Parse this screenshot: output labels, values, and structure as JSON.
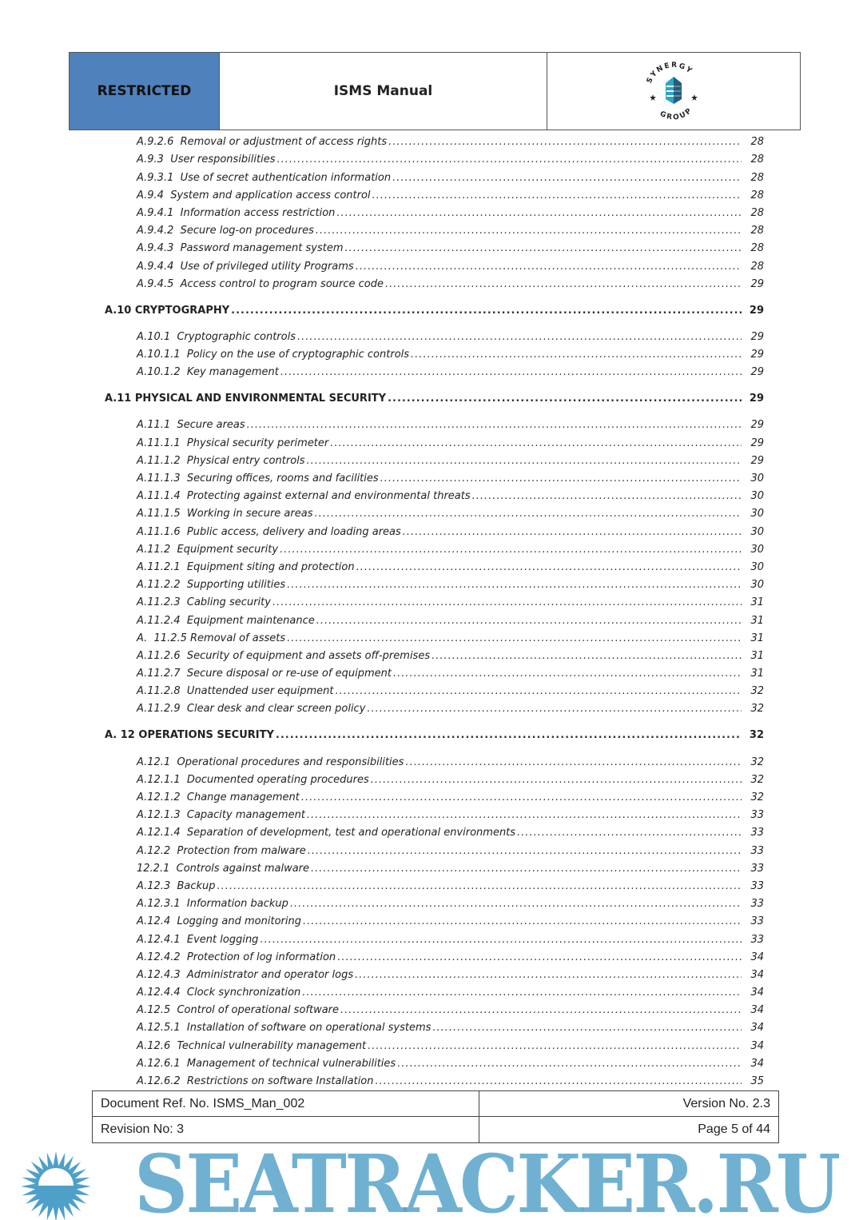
{
  "header": {
    "classification": "RESTRICTED",
    "title": "ISMS  Manual",
    "logo_text": "SYNERGY GROUP",
    "brand_color": "#4f81bd"
  },
  "toc": [
    {
      "level": 2,
      "num": "A.9.2.6",
      "title": "Removal or adjustment of access rights",
      "page": "28"
    },
    {
      "level": 2,
      "num": "A.9.3",
      "title": "User responsibilities",
      "page": "28"
    },
    {
      "level": 2,
      "num": "A.9.3.1",
      "title": "Use of secret authentication information",
      "page": "28"
    },
    {
      "level": 2,
      "num": "A.9.4",
      "title": "System and application access control",
      "page": "28"
    },
    {
      "level": 2,
      "num": "A.9.4.1",
      "title": "Information access restriction",
      "page": "28"
    },
    {
      "level": 2,
      "num": "A.9.4.2",
      "title": "Secure log-on procedures",
      "page": "28"
    },
    {
      "level": 2,
      "num": "A.9.4.3",
      "title": "Password management system",
      "page": "28"
    },
    {
      "level": 2,
      "num": "A.9.4.4",
      "title": "Use of privileged utility Programs",
      "page": "28"
    },
    {
      "level": 2,
      "num": "A.9.4.5",
      "title": "Access control to program source code",
      "page": "29"
    },
    {
      "level": 1,
      "num": "A.10",
      "title": "CRYPTOGRAPHY",
      "page": "29"
    },
    {
      "level": 2,
      "num": "A.10.1",
      "title": "Cryptographic controls",
      "page": "29"
    },
    {
      "level": 2,
      "num": "A.10.1.1",
      "title": "Policy on the use of cryptographic controls",
      "page": "29"
    },
    {
      "level": 2,
      "num": "A.10.1.2",
      "title": "Key management",
      "page": "29"
    },
    {
      "level": 1,
      "num": "A.11",
      "title": "PHYSICAL AND ENVIRONMENTAL SECURITY",
      "page": "29"
    },
    {
      "level": 2,
      "num": "A.11.1",
      "title": "Secure areas",
      "page": "29"
    },
    {
      "level": 2,
      "num": "A.11.1.1",
      "title": "Physical security perimeter",
      "page": "29"
    },
    {
      "level": 2,
      "num": "A.11.1.2",
      "title": "Physical entry controls",
      "page": "29"
    },
    {
      "level": 2,
      "num": "A.11.1.3",
      "title": "Securing offices, rooms and facilities",
      "page": "30"
    },
    {
      "level": 2,
      "num": "A.11.1.4",
      "title": "Protecting against external and environmental threats",
      "page": "30"
    },
    {
      "level": 2,
      "num": "A.11.1.5",
      "title": "Working in secure areas",
      "page": "30"
    },
    {
      "level": 2,
      "num": "A.11.1.6",
      "title": "Public access, delivery and loading areas",
      "page": "30"
    },
    {
      "level": 2,
      "num": "A.11.2",
      "title": "Equipment security",
      "page": "30"
    },
    {
      "level": 2,
      "num": "A.11.2.1",
      "title": "Equipment siting and protection",
      "page": "30"
    },
    {
      "level": 2,
      "num": "A.11.2.2",
      "title": "Supporting utilities",
      "page": "30"
    },
    {
      "level": 2,
      "num": "A.11.2.3",
      "title": "Cabling security",
      "page": "31"
    },
    {
      "level": 2,
      "num": "A.11.2.4",
      "title": "Equipment maintenance",
      "page": "31"
    },
    {
      "level": 2,
      "num": "A.",
      "title": "11.2.5 Removal of assets",
      "page": "31"
    },
    {
      "level": 2,
      "num": "A.11.2.6",
      "title": "Security of equipment and assets off-premises",
      "page": "31"
    },
    {
      "level": 2,
      "num": "A.11.2.7",
      "title": "Secure disposal or re-use of equipment",
      "page": "31"
    },
    {
      "level": 2,
      "num": "A.11.2.8",
      "title": "Unattended user equipment",
      "page": "32"
    },
    {
      "level": 2,
      "num": "A.11.2.9",
      "title": "Clear desk and clear screen policy",
      "page": "32"
    },
    {
      "level": 1,
      "num": "A. 12",
      "title": "OPERATIONS SECURITY",
      "page": "32"
    },
    {
      "level": 2,
      "num": "A.12.1",
      "title": "Operational procedures and responsibilities",
      "page": "32"
    },
    {
      "level": 2,
      "num": "A.12.1.1",
      "title": "Documented operating procedures",
      "page": "32"
    },
    {
      "level": 2,
      "num": "A.12.1.2",
      "title": "Change management",
      "page": "32"
    },
    {
      "level": 2,
      "num": "A.12.1.3",
      "title": "Capacity management",
      "page": "33"
    },
    {
      "level": 2,
      "num": "A.12.1.4",
      "title": "Separation of development, test and operational environments",
      "page": "33"
    },
    {
      "level": 2,
      "num": "A.12.2",
      "title": "Protection from malware",
      "page": "33"
    },
    {
      "level": 2,
      "num": "12.2.1",
      "title": "Controls against malware",
      "page": "33"
    },
    {
      "level": 2,
      "num": "A.12.3",
      "title": "Backup",
      "page": "33"
    },
    {
      "level": 2,
      "num": "A.12.3.1",
      "title": "Information backup",
      "page": "33"
    },
    {
      "level": 2,
      "num": "A.12.4",
      "title": "Logging and monitoring",
      "page": "33"
    },
    {
      "level": 2,
      "num": "A.12.4.1",
      "title": "Event logging",
      "page": "33"
    },
    {
      "level": 2,
      "num": "A.12.4.2",
      "title": "Protection of log information",
      "page": "34"
    },
    {
      "level": 2,
      "num": "A.12.4.3",
      "title": "Administrator and operator logs",
      "page": "34"
    },
    {
      "level": 2,
      "num": "A.12.4.4",
      "title": "Clock synchronization",
      "page": "34"
    },
    {
      "level": 2,
      "num": "A.12.5",
      "title": "Control of operational software",
      "page": "34"
    },
    {
      "level": 2,
      "num": "A.12.5.1",
      "title": "Installation of software on operational systems",
      "page": "34"
    },
    {
      "level": 2,
      "num": "A.12.6",
      "title": "Technical vulnerability management",
      "page": "34"
    },
    {
      "level": 2,
      "num": "A.12.6.1",
      "title": "Management of technical vulnerabilities",
      "page": "34"
    },
    {
      "level": 2,
      "num": "A.12.6.2",
      "title": "Restrictions on software Installation",
      "page": "35"
    }
  ],
  "footer": {
    "doc_ref": "Document Ref. No. ISMS_Man_002",
    "version": "Version No. 2.3",
    "revision": "Revision No: 3",
    "page": "Page 5 of 44"
  },
  "watermark": {
    "text": "SEATRACKER.RU",
    "color": "#4fa0c8"
  }
}
